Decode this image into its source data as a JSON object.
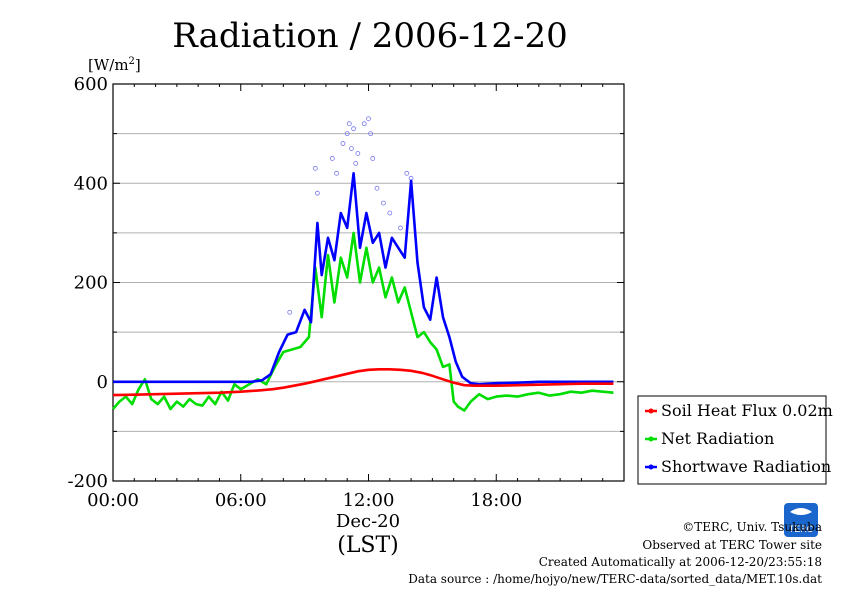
{
  "chart_data": {
    "type": "line",
    "title": "Radiation / 2006-12-20",
    "y_unit": "[W/m²]",
    "y_unit_base": "[W/m",
    "y_unit_sup": "2",
    "y_unit_close": "]",
    "ylim": [
      -200,
      600
    ],
    "y_ticks": [
      -200,
      0,
      200,
      400,
      600
    ],
    "y_tick_labels": [
      "-200",
      "0",
      "200",
      "400",
      "600"
    ],
    "xlim": [
      0,
      24
    ],
    "x_ticks": [
      0,
      6,
      12,
      18
    ],
    "x_tick_labels": [
      "00:00",
      "06:00",
      "12:00",
      "18:00"
    ],
    "x_date_label": "Dec-20",
    "xlabel": "(LST)",
    "grid": true,
    "legend_position": "right",
    "series": [
      {
        "name": "Soil Heat Flux 0.02m",
        "color": "#ff0000",
        "x": [
          0,
          1,
          2,
          3,
          4,
          5,
          6,
          7,
          7.5,
          8,
          8.5,
          9,
          9.5,
          10,
          10.5,
          11,
          11.5,
          12,
          12.5,
          13,
          13.5,
          14,
          14.5,
          15,
          15.5,
          16,
          16.5,
          17,
          18,
          19,
          20,
          21,
          22,
          23,
          23.5
        ],
        "values": [
          -27,
          -26,
          -25,
          -24,
          -23,
          -22,
          -20,
          -17,
          -15,
          -12,
          -8,
          -4,
          1,
          6,
          11,
          16,
          21,
          24,
          25,
          25,
          24,
          22,
          18,
          12,
          5,
          -2,
          -7,
          -8,
          -8,
          -7,
          -6,
          -5,
          -4,
          -4,
          -4
        ]
      },
      {
        "name": "Net Radiation",
        "color": "#00dd00",
        "x": [
          0,
          0.3,
          0.6,
          0.9,
          1.2,
          1.5,
          1.8,
          2.1,
          2.4,
          2.7,
          3.0,
          3.3,
          3.6,
          3.9,
          4.2,
          4.5,
          4.8,
          5.1,
          5.4,
          5.7,
          6.0,
          6.4,
          6.8,
          7.2,
          7.6,
          8.0,
          8.4,
          8.8,
          9.2,
          9.5,
          9.8,
          10.1,
          10.4,
          10.7,
          11.0,
          11.3,
          11.6,
          11.9,
          12.2,
          12.5,
          12.8,
          13.1,
          13.4,
          13.7,
          14.0,
          14.3,
          14.6,
          14.9,
          15.2,
          15.5,
          15.8,
          16.0,
          16.2,
          16.5,
          16.8,
          17.2,
          17.6,
          18.0,
          18.5,
          19.0,
          19.5,
          20.0,
          20.5,
          21.0,
          21.5,
          22.0,
          22.5,
          23.0,
          23.5
        ],
        "values": [
          -55,
          -40,
          -30,
          -45,
          -15,
          5,
          -35,
          -45,
          -30,
          -55,
          -40,
          -50,
          -35,
          -45,
          -48,
          -30,
          -45,
          -20,
          -38,
          -5,
          -15,
          -5,
          5,
          -5,
          30,
          60,
          65,
          70,
          90,
          230,
          130,
          255,
          160,
          250,
          210,
          300,
          200,
          270,
          200,
          230,
          170,
          210,
          160,
          190,
          140,
          90,
          100,
          80,
          65,
          30,
          35,
          -40,
          -50,
          -58,
          -40,
          -25,
          -35,
          -30,
          -28,
          -30,
          -25,
          -22,
          -28,
          -25,
          -20,
          -22,
          -18,
          -20,
          -22
        ]
      },
      {
        "name": "Shortwave Radiation",
        "color": "#0000ff",
        "x": [
          0,
          1,
          2,
          3,
          4,
          5,
          6,
          6.5,
          7.0,
          7.4,
          7.8,
          8.2,
          8.6,
          9.0,
          9.3,
          9.6,
          9.8,
          10.1,
          10.4,
          10.7,
          11.0,
          11.3,
          11.6,
          11.9,
          12.2,
          12.5,
          12.8,
          13.1,
          13.4,
          13.7,
          14.0,
          14.3,
          14.6,
          14.9,
          15.2,
          15.5,
          15.8,
          16.1,
          16.4,
          16.8,
          17.2,
          18,
          19,
          20,
          21,
          22,
          23,
          23.5
        ],
        "values": [
          0,
          0,
          0,
          0,
          0,
          0,
          0,
          0,
          3,
          15,
          60,
          95,
          100,
          145,
          120,
          320,
          215,
          290,
          245,
          340,
          310,
          420,
          270,
          340,
          280,
          300,
          230,
          290,
          270,
          250,
          405,
          240,
          150,
          125,
          210,
          130,
          90,
          40,
          10,
          -3,
          -5,
          -3,
          -2,
          0,
          0,
          0,
          0,
          0
        ]
      }
    ],
    "scatter_outliers": {
      "color": "#7777ee",
      "x": [
        8.3,
        9.5,
        9.6,
        10.3,
        10.5,
        10.8,
        11.0,
        11.1,
        11.2,
        11.3,
        11.4,
        11.5,
        11.8,
        12.0,
        12.1,
        12.2,
        12.4,
        12.7,
        13.0,
        13.5,
        13.8,
        14.0
      ],
      "y": [
        140,
        430,
        380,
        450,
        420,
        480,
        500,
        520,
        470,
        510,
        440,
        460,
        520,
        530,
        500,
        450,
        390,
        360,
        340,
        310,
        420,
        410
      ]
    }
  },
  "footer": {
    "copyright": "©TERC, Univ. Tsukuba",
    "observed": "Observed at TERC Tower site",
    "created": "Created Automatically at 2006-12-20/23:55:18",
    "source": "Data source : /home/hojyo/new/TERC-data/sorted_data/MET.10s.dat",
    "logo_text": "TERC"
  }
}
